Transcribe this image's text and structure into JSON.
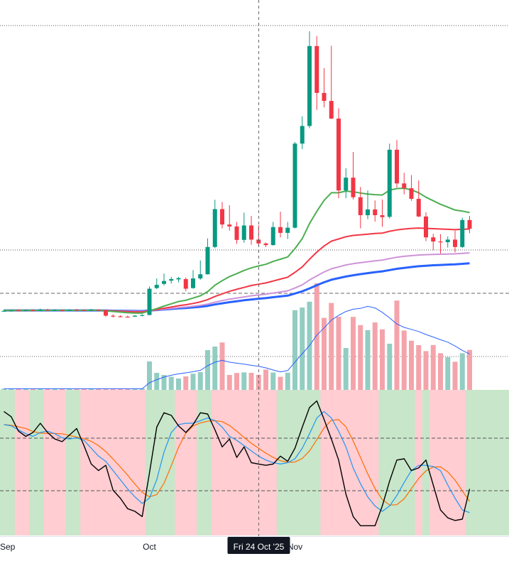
{
  "x_axis": {
    "labels": [
      {
        "text": "Sep",
        "bar": 0.5
      },
      {
        "text": "Oct",
        "bar": 20
      },
      {
        "text": "Nov",
        "bar": 40
      }
    ],
    "crosshair_label": "Fri 24 Oct '25",
    "crosshair_bar": 35
  },
  "colors": {
    "up": "#089981",
    "down": "#f23645",
    "vol_up": "#92cdc2",
    "vol_down": "#f5a3aa",
    "ema_green": "#4caf50",
    "ema_red": "#f23645",
    "ema_violet": "#ce93d8",
    "ema_blue": "#2962ff",
    "vol_ma": "#2962ff",
    "osc_black": "#000000",
    "osc_blue": "#2196f3",
    "osc_orange": "#ff6d00",
    "bg_green": "#c8e6c9",
    "bg_red": "#ffcdd2"
  },
  "chart_data": {
    "type": "candlestick",
    "price_range": [
      0,
      100
    ],
    "volume_range": [
      0,
      100
    ],
    "oscillator_range": [
      0,
      100
    ],
    "candles": [
      [
        10.9,
        11.3,
        10.7,
        10.9
      ],
      [
        10.9,
        11.3,
        10.7,
        11.0
      ],
      [
        11.1,
        11.4,
        10.9,
        11.0
      ],
      [
        11.0,
        11.4,
        10.8,
        11.1
      ],
      [
        11.1,
        11.4,
        10.9,
        11.0
      ],
      [
        11.0,
        11.6,
        10.9,
        11.3
      ],
      [
        11.2,
        11.5,
        11.0,
        11.1
      ],
      [
        11.1,
        11.4,
        10.9,
        11.2
      ],
      [
        11.1,
        11.4,
        10.9,
        11.0
      ],
      [
        11.0,
        11.4,
        10.8,
        11.2
      ],
      [
        11.2,
        11.5,
        11.0,
        11.1
      ],
      [
        11.1,
        11.4,
        10.9,
        11.0
      ],
      [
        11.1,
        11.5,
        10.9,
        11.3
      ],
      [
        11.2,
        11.4,
        11.0,
        11.1
      ],
      [
        11.1,
        11.3,
        9.1,
        9.4
      ],
      [
        9.4,
        9.8,
        8.8,
        9.2
      ],
      [
        9.2,
        9.5,
        8.9,
        9.1
      ],
      [
        9.1,
        9.4,
        8.9,
        9.0
      ],
      [
        9.1,
        9.6,
        9.0,
        9.4
      ],
      [
        9.4,
        9.8,
        9.2,
        9.6
      ],
      [
        9.6,
        18.5,
        9.6,
        17.8
      ],
      [
        18.0,
        21.0,
        17.7,
        19.0
      ],
      [
        19.3,
        22.5,
        18.8,
        20.2
      ],
      [
        20.3,
        21.5,
        19.4,
        20.8
      ],
      [
        20.7,
        21.5,
        19.8,
        21.1
      ],
      [
        20.8,
        21.3,
        17.0,
        17.8
      ],
      [
        18.0,
        23.6,
        17.8,
        21.0
      ],
      [
        21.0,
        26.6,
        20.6,
        22.3
      ],
      [
        22.3,
        33.5,
        22.2,
        30.8
      ],
      [
        30.8,
        45.5,
        30.4,
        42.6
      ],
      [
        42.6,
        44.8,
        36.6,
        37.8
      ],
      [
        37.8,
        43.8,
        35.9,
        37.2
      ],
      [
        37.2,
        38.6,
        31.8,
        33.0
      ],
      [
        33.0,
        41.5,
        32.1,
        37.5
      ],
      [
        37.5,
        40.5,
        31.5,
        33.1
      ],
      [
        33.1,
        37.6,
        31.2,
        31.9
      ],
      [
        31.9,
        32.2,
        30.8,
        31.4
      ],
      [
        31.4,
        38.6,
        31.2,
        37.0
      ],
      [
        37.0,
        41.8,
        33.8,
        35.2
      ],
      [
        35.2,
        38.6,
        33.3,
        36.8
      ],
      [
        36.8,
        63.5,
        36.6,
        63.0
      ],
      [
        63.0,
        71.5,
        61.3,
        68.5
      ],
      [
        68.5,
        98.0,
        67.8,
        93.4
      ],
      [
        93.4,
        96.5,
        73.5,
        78.8
      ],
      [
        78.8,
        86.5,
        74.3,
        76.3
      ],
      [
        76.3,
        93.5,
        70.7,
        70.8
      ],
      [
        70.8,
        74.0,
        46.0,
        48.4
      ],
      [
        48.4,
        55.3,
        46.0,
        52.4
      ],
      [
        52.4,
        60.4,
        45.6,
        46.3
      ],
      [
        46.3,
        49.5,
        36.6,
        40.7
      ],
      [
        40.7,
        48.4,
        39.5,
        42.5
      ],
      [
        42.5,
        45.3,
        38.7,
        40.7
      ],
      [
        40.7,
        45.6,
        37.1,
        40.1
      ],
      [
        40.2,
        63.0,
        39.7,
        61.1
      ],
      [
        61.1,
        64.1,
        49.3,
        50.6
      ],
      [
        50.6,
        53.9,
        47.2,
        49.1
      ],
      [
        49.1,
        53.2,
        45.2,
        45.8
      ],
      [
        45.8,
        51.5,
        40.1,
        40.3
      ],
      [
        40.3,
        41.6,
        32.6,
        33.8
      ],
      [
        33.8,
        34.9,
        29.8,
        32.5
      ],
      [
        32.5,
        34.8,
        28.8,
        32.3
      ],
      [
        32.3,
        34.1,
        30.6,
        33.1
      ],
      [
        33.1,
        35.9,
        29.1,
        30.8
      ],
      [
        30.8,
        39.9,
        30.5,
        39.2
      ],
      [
        39.2,
        40.5,
        35.1,
        36.5
      ]
    ],
    "volume": [
      0.8,
      0.7,
      0.9,
      0.8,
      0.6,
      0.9,
      0.8,
      0.7,
      0.6,
      0.7,
      0.6,
      0.7,
      0.8,
      0.9,
      0.7,
      0.6,
      0.7,
      0.6,
      0.8,
      1.0,
      20.0,
      12.0,
      10.5,
      9.2,
      8.0,
      9.5,
      11.4,
      12.5,
      28.0,
      30.5,
      33.4,
      10.5,
      11.9,
      12.3,
      12.0,
      10.6,
      14.3,
      12.2,
      9.2,
      12.1,
      56.1,
      58.0,
      62.1,
      75.1,
      50.7,
      61.2,
      51.5,
      29.5,
      51.4,
      45.6,
      42.1,
      47.5,
      42.6,
      32.5,
      62.9,
      41.8,
      34.6,
      31.5,
      27.3,
      31.6,
      25.8,
      23.0,
      19.8,
      25.8,
      28.1
    ],
    "ema_green": [
      11.05,
      11.05,
      11.05,
      11.05,
      11.05,
      11.06,
      11.06,
      11.06,
      11.06,
      11.06,
      11.06,
      11.06,
      11.08,
      11.08,
      10.9,
      10.7,
      10.5,
      10.3,
      10.2,
      10.2,
      10.9,
      11.6,
      12.4,
      13.1,
      13.8,
      14.2,
      14.9,
      15.6,
      16.9,
      18.9,
      20.3,
      21.6,
      22.5,
      23.5,
      24.3,
      24.9,
      25.4,
      26.3,
      27.0,
      27.7,
      30.3,
      33.4,
      38.1,
      41.9,
      45.3,
      47.7,
      47.7,
      48.2,
      48.0,
      47.6,
      47.3,
      47.1,
      47.0,
      48.5,
      49.0,
      49.1,
      48.6,
      47.7,
      46.3,
      45.2,
      44.1,
      43.2,
      42.3,
      42.0,
      41.5
    ],
    "ema_red": [
      11.05,
      11.05,
      11.05,
      11.05,
      11.05,
      11.06,
      11.06,
      11.06,
      11.06,
      11.06,
      11.06,
      11.06,
      11.07,
      11.07,
      10.95,
      10.85,
      10.75,
      10.65,
      10.58,
      10.55,
      10.95,
      11.3,
      11.72,
      12.1,
      12.5,
      12.8,
      13.2,
      13.7,
      14.4,
      15.4,
      16.2,
      17.0,
      17.6,
      18.2,
      18.8,
      19.2,
      19.6,
      20.2,
      20.8,
      21.4,
      22.9,
      24.6,
      27.0,
      29.2,
      31.1,
      32.6,
      33.3,
      34.0,
      34.4,
      34.6,
      34.8,
      35.0,
      35.1,
      35.7,
      36.1,
      36.4,
      36.6,
      36.7,
      36.6,
      36.5,
      36.4,
      36.3,
      36.2,
      36.3,
      36.4
    ],
    "ema_violet": [
      11.05,
      11.05,
      11.05,
      11.05,
      11.05,
      11.05,
      11.05,
      11.05,
      11.05,
      11.05,
      11.06,
      11.06,
      11.06,
      11.06,
      10.98,
      10.92,
      10.86,
      10.8,
      10.76,
      10.74,
      10.95,
      11.17,
      11.42,
      11.65,
      11.9,
      12.08,
      12.32,
      12.6,
      13.0,
      13.6,
      14.1,
      14.55,
      14.9,
      15.25,
      15.6,
      15.85,
      16.1,
      16.45,
      16.8,
      17.15,
      18.0,
      19.0,
      20.5,
      21.8,
      23.0,
      24.0,
      24.6,
      25.2,
      25.6,
      25.9,
      26.2,
      26.5,
      26.7,
      27.2,
      27.6,
      27.9,
      28.1,
      28.3,
      28.4,
      28.5,
      28.55,
      28.6,
      28.65,
      28.8,
      28.95
    ],
    "ema_blue": [
      11.05,
      11.05,
      11.05,
      11.05,
      11.05,
      11.05,
      11.05,
      11.05,
      11.05,
      11.05,
      11.05,
      11.05,
      11.05,
      11.05,
      11.0,
      10.96,
      10.92,
      10.88,
      10.86,
      10.85,
      11.0,
      11.15,
      11.32,
      11.5,
      11.66,
      11.8,
      11.98,
      12.17,
      12.45,
      12.9,
      13.25,
      13.6,
      13.9,
      14.2,
      14.45,
      14.7,
      14.9,
      15.15,
      15.4,
      15.65,
      16.3,
      17.0,
      17.9,
      18.9,
      19.8,
      20.6,
      21.1,
      21.6,
      22.0,
      22.35,
      22.65,
      22.95,
      23.2,
      23.6,
      24.0,
      24.3,
      24.55,
      24.8,
      24.95,
      25.1,
      25.2,
      25.3,
      25.4,
      25.55,
      25.7
    ],
    "volume_ma": [
      0.8,
      0.8,
      0.8,
      0.8,
      0.8,
      0.8,
      0.8,
      0.8,
      0.8,
      0.8,
      0.8,
      0.8,
      0.8,
      0.8,
      0.8,
      0.8,
      0.8,
      0.8,
      0.8,
      0.8,
      5.0,
      7.2,
      9.0,
      10.3,
      11.3,
      12.0,
      12.8,
      13.8,
      17.0,
      19.5,
      20.8,
      19.5,
      18.8,
      18.1,
      17.3,
      16.6,
      15.5,
      14.0,
      12.7,
      13.6,
      19.6,
      25.5,
      31.2,
      38.6,
      43.6,
      49.1,
      52.5,
      55.2,
      56.8,
      57.4,
      58.8,
      57.7,
      54.6,
      50.7,
      46.4,
      44.0,
      42.6,
      41.1,
      39.0,
      37.2,
      35.3,
      33.6,
      30.9,
      27.8,
      25.3
    ],
    "oscillator_black": [
      89,
      85,
      74,
      70,
      73,
      80,
      73,
      68,
      66,
      71,
      76,
      63,
      49,
      44,
      48,
      29,
      23,
      15,
      13,
      9,
      42,
      77,
      88,
      86,
      78,
      73,
      79,
      88,
      87,
      75,
      62,
      68,
      54,
      62,
      50,
      49,
      48,
      49,
      55,
      51,
      61,
      77,
      92,
      97,
      83,
      68,
      52,
      26,
      9,
      2,
      2,
      2,
      17,
      36,
      52,
      53,
      44,
      46,
      52,
      33,
      14,
      8,
      6,
      7,
      30
    ],
    "oscillator_blue": [
      79,
      78,
      75,
      72,
      70,
      73,
      74,
      72,
      69,
      68,
      69,
      67,
      61,
      55,
      51,
      44,
      37,
      30,
      24,
      19,
      23,
      37,
      58,
      73,
      79,
      80,
      80,
      82,
      84,
      82,
      77,
      70,
      67,
      63,
      59,
      55,
      52,
      50,
      49,
      50,
      53,
      61,
      72,
      84,
      89,
      84,
      74,
      62,
      46,
      34,
      24,
      17,
      13,
      17,
      25,
      35,
      44,
      48,
      48,
      47,
      44,
      33,
      23,
      14,
      12
    ]
  }
}
